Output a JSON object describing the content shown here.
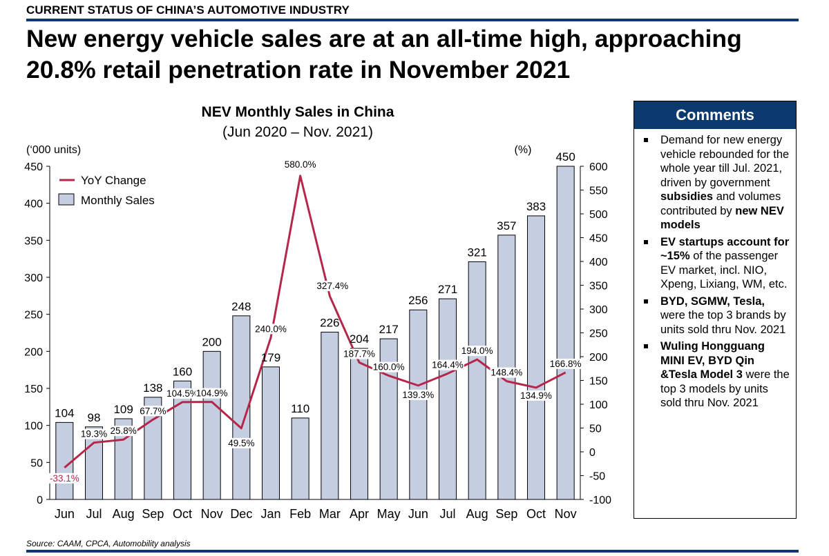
{
  "header": {
    "label": "CURRENT STATUS OF CHINA’S AUTOMOTIVE INDUSTRY",
    "headline_line1": "New energy vehicle sales are at an all-time high, approaching",
    "headline_line2": "20.8% retail penetration rate in November 2021"
  },
  "chart_data": {
    "type": "bar",
    "title": "NEV Monthly Sales in China",
    "subtitle": "(Jun 2020 – Nov. 2021)",
    "ylabel": "(‘000 units)",
    "y2label": "(%)",
    "categories": [
      "Jun",
      "Jul",
      "Aug",
      "Sep",
      "Oct",
      "Nov",
      "Dec",
      "Jan",
      "Feb",
      "Mar",
      "Apr",
      "May",
      "Jun",
      "Jul",
      "Aug",
      "Sep",
      "Oct",
      "Nov"
    ],
    "ylim": [
      0,
      450
    ],
    "yticks": [
      0,
      50,
      100,
      150,
      200,
      250,
      300,
      350,
      400,
      450
    ],
    "y2lim": [
      -100,
      600
    ],
    "y2ticks": [
      -100,
      -50,
      0,
      50,
      100,
      150,
      200,
      250,
      300,
      350,
      400,
      450,
      500,
      550,
      600
    ],
    "legend_position": "top-left",
    "series": [
      {
        "name": "Monthly Sales",
        "kind": "bar",
        "axis": "left",
        "color": "#c5cde0",
        "values": [
          104,
          98,
          109,
          138,
          160,
          200,
          248,
          179,
          110,
          226,
          204,
          217,
          256,
          271,
          321,
          357,
          383,
          450
        ],
        "labels": [
          "104",
          "98",
          "109",
          "138",
          "160",
          "200",
          "248",
          "179",
          "110",
          "226",
          "204",
          "217",
          "256",
          "271",
          "321",
          "357",
          "383",
          "450"
        ]
      },
      {
        "name": "YoY Change",
        "kind": "line",
        "axis": "right",
        "color": "#b5264a",
        "values": [
          -33.1,
          19.3,
          25.8,
          67.7,
          104.5,
          104.9,
          49.5,
          240.0,
          580.0,
          327.4,
          187.7,
          160.0,
          139.3,
          164.4,
          194.0,
          148.4,
          134.9,
          166.8
        ],
        "labels": [
          "-33.1%",
          "19.3%",
          "25.8%",
          "67.7%",
          "104.5%",
          "104.9%",
          "49.5%",
          "240.0%",
          "580.0%",
          "327.4%",
          "187.7%",
          "160.0%",
          "139.3%",
          "164.4%",
          "194.0%",
          "148.4%",
          "134.9%",
          "166.8%"
        ]
      }
    ]
  },
  "comments": {
    "title": "Comments",
    "items": [
      [
        {
          "t": "Demand for new energy vehicle rebounded for the whole year till Jul. 2021, driven by government "
        },
        {
          "t": "subsidies",
          "b": true
        },
        {
          "t": " and volumes contributed by "
        },
        {
          "t": "new NEV models",
          "b": true
        }
      ],
      [
        {
          "t": "EV startups account for ~15%",
          "b": true
        },
        {
          "t": " of the passenger EV market, incl. NIO, Xpeng, Lixiang, WM, etc."
        }
      ],
      [
        {
          "t": "BYD, SGMW, Tesla,",
          "b": true
        },
        {
          "t": " were the top 3 brands by units sold thru Nov. 2021"
        }
      ],
      [
        {
          "t": "Wuling Hongguang MINI EV, BYD Qin &Tesla Model 3",
          "b": true
        },
        {
          "t": " were the top 3 models by units sold thru Nov. 2021"
        }
      ]
    ]
  },
  "footer": {
    "source": "Source: CAAM, CPCA, Automobility analysis"
  }
}
